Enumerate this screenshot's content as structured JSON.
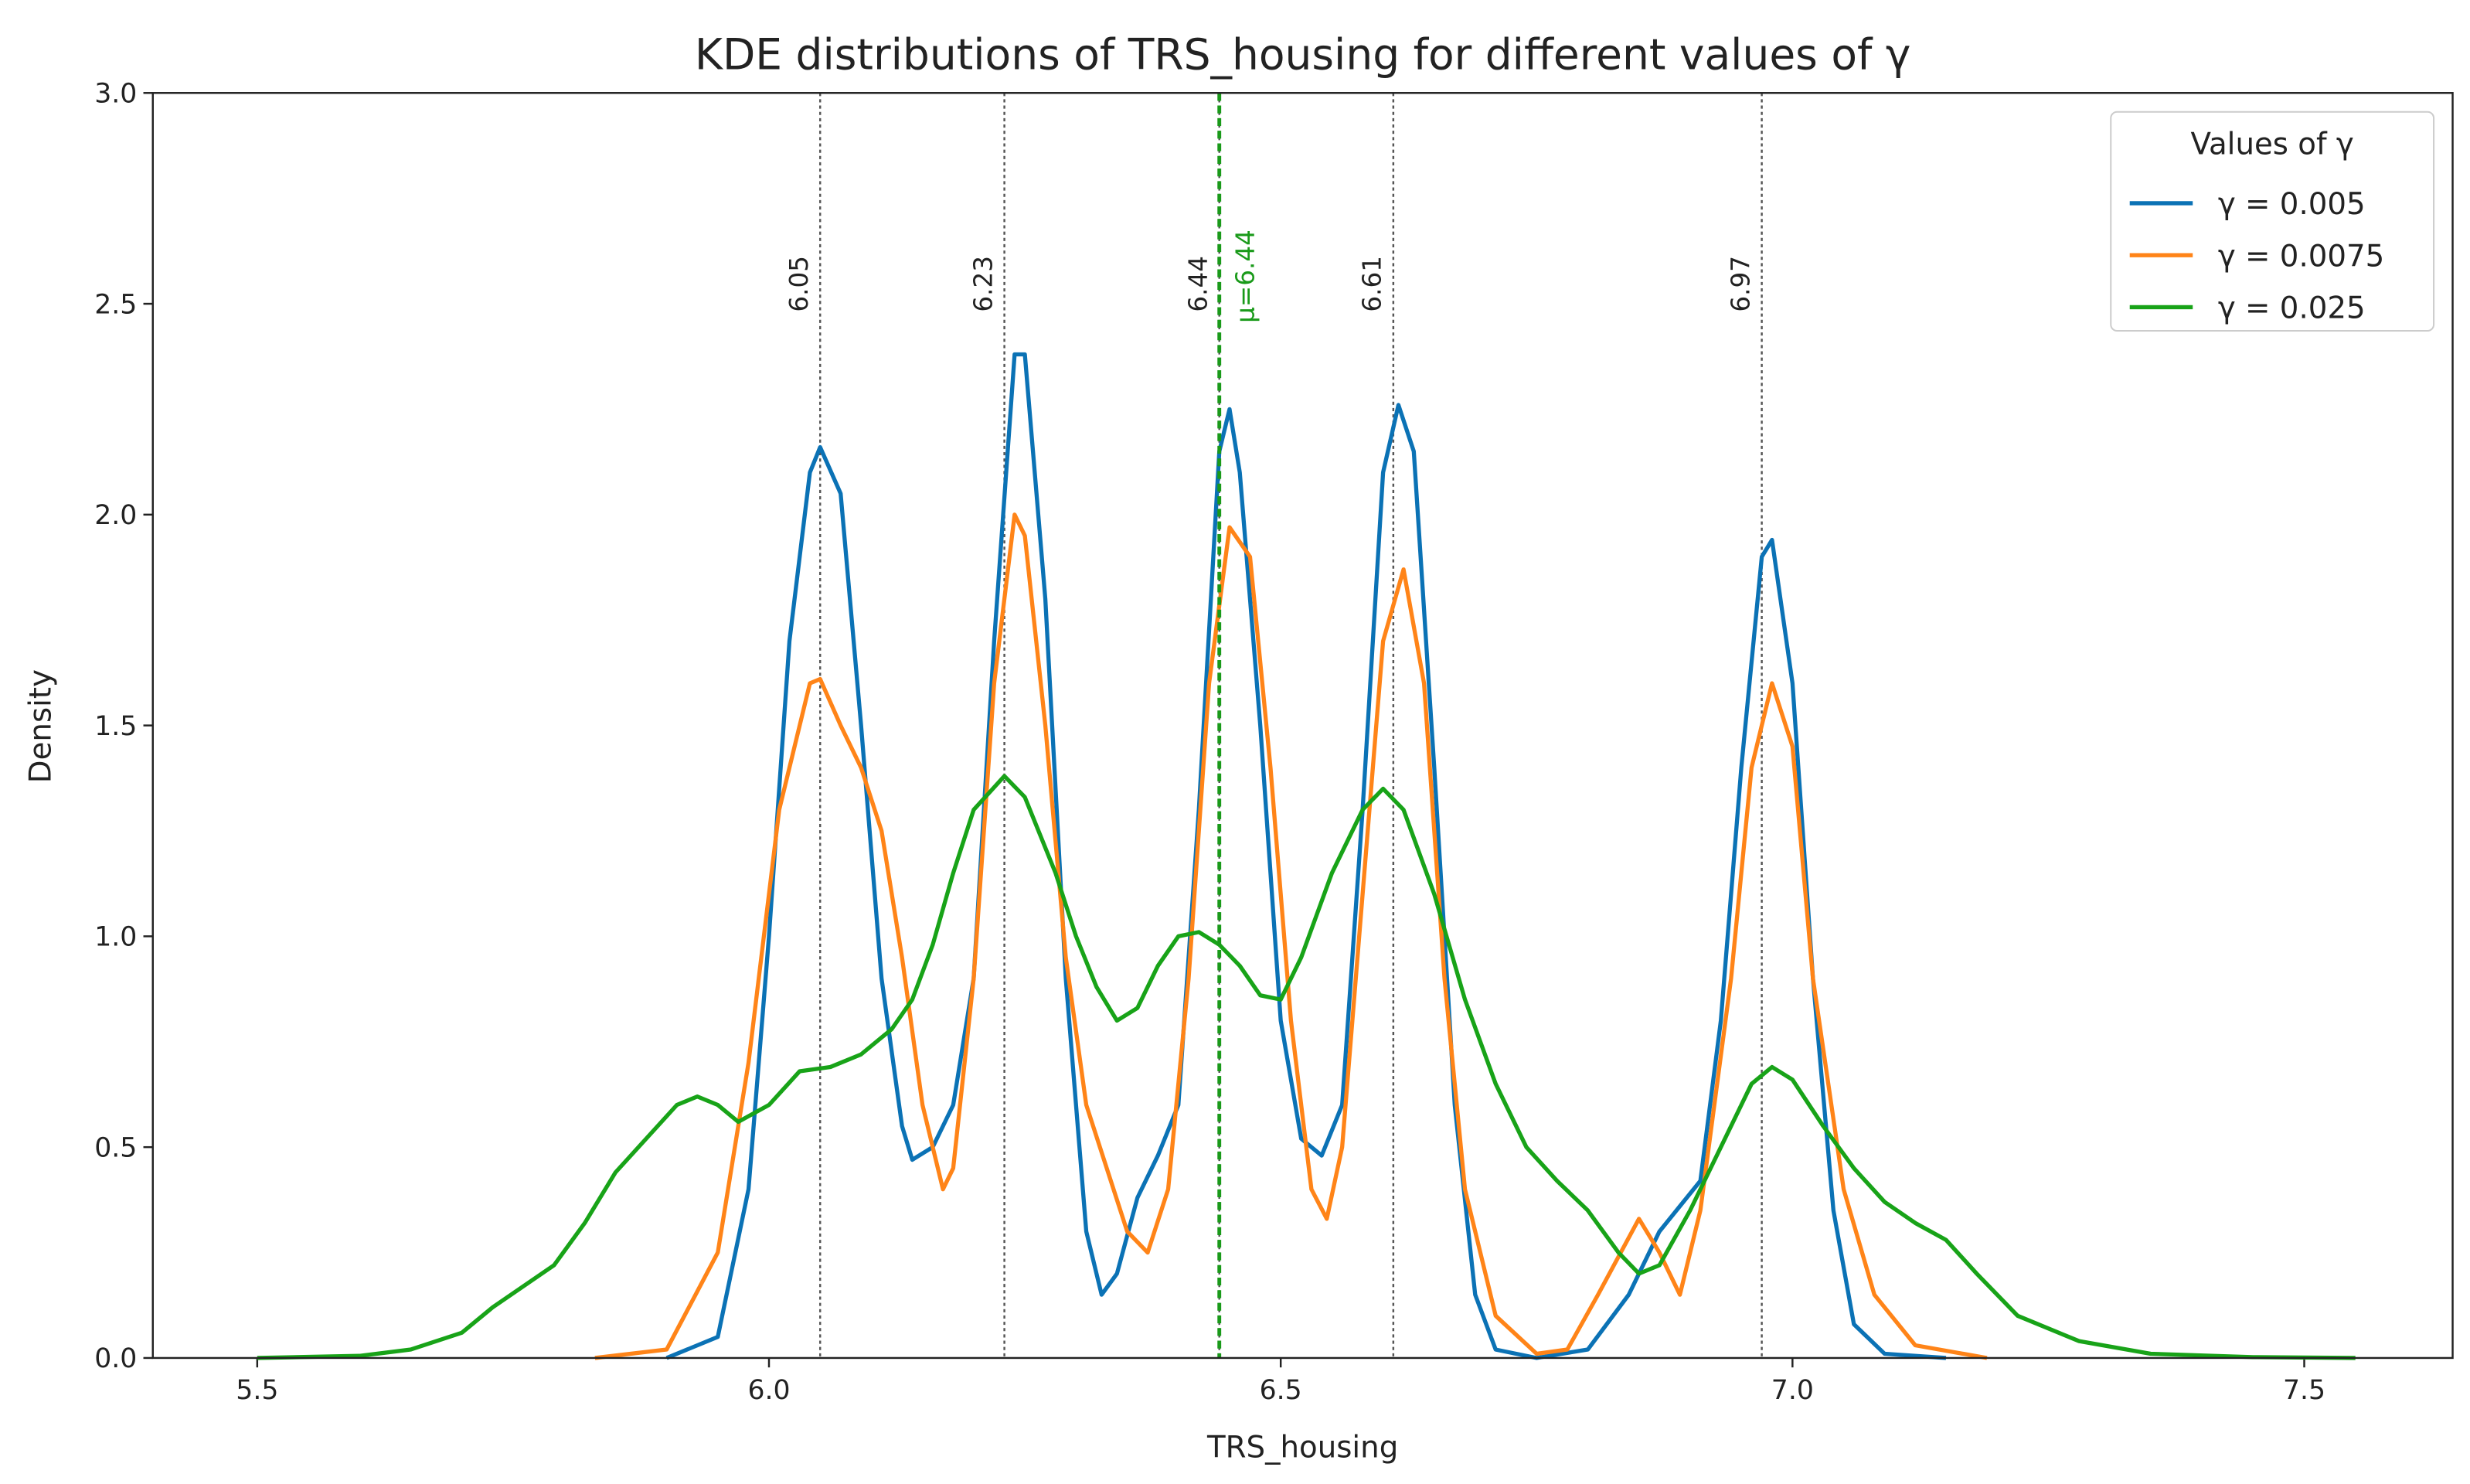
{
  "chart_data": {
    "type": "line",
    "title": "KDE distributions of TRS_housing for different values of γ",
    "xlabel": "TRS_housing",
    "ylabel": "Density",
    "xlim": [
      5.398,
      7.645
    ],
    "ylim": [
      0,
      3
    ],
    "xticks": [
      5.5,
      {
        "value": 6.0,
        "label": "6.0"
      },
      6.5,
      {
        "value": 7.0,
        "label": "7.0"
      },
      7.5
    ],
    "yticks": [
      {
        "value": 0,
        "label": "0.0"
      },
      0.5,
      {
        "value": 1,
        "label": "1.0"
      },
      1.5,
      {
        "value": 2,
        "label": "2.0"
      },
      2.5,
      {
        "value": 3,
        "label": "3.0"
      }
    ],
    "legend_title": "Values of γ",
    "legend_position": "upper right",
    "vlines": [
      6.05,
      6.23,
      6.44,
      6.61,
      6.97
    ],
    "mean_line": {
      "value": 6.44,
      "label": "μ=6.44",
      "color": "#1a9a1a"
    },
    "series": [
      {
        "name": "γ = 0.005",
        "color": "#0b72b5",
        "x": [
          5.9,
          5.95,
          5.98,
          6.0,
          6.02,
          6.04,
          6.05,
          6.07,
          6.09,
          6.11,
          6.13,
          6.14,
          6.16,
          6.18,
          6.2,
          6.22,
          6.24,
          6.25,
          6.27,
          6.29,
          6.31,
          6.325,
          6.34,
          6.36,
          6.38,
          6.4,
          6.42,
          6.44,
          6.45,
          6.46,
          6.48,
          6.5,
          6.52,
          6.54,
          6.56,
          6.58,
          6.6,
          6.615,
          6.63,
          6.65,
          6.67,
          6.69,
          6.71,
          6.75,
          6.8,
          6.84,
          6.87,
          6.89,
          6.91,
          6.93,
          6.95,
          6.97,
          6.98,
          7.0,
          7.02,
          7.04,
          7.06,
          7.09,
          7.15
        ],
        "values": [
          0,
          0.05,
          0.4,
          1.0,
          1.7,
          2.1,
          2.16,
          2.05,
          1.5,
          0.9,
          0.55,
          0.47,
          0.5,
          0.6,
          0.9,
          1.7,
          2.38,
          2.38,
          1.8,
          0.9,
          0.3,
          0.15,
          0.2,
          0.38,
          0.48,
          0.6,
          1.3,
          2.15,
          2.25,
          2.1,
          1.5,
          0.8,
          0.52,
          0.48,
          0.6,
          1.3,
          2.1,
          2.26,
          2.15,
          1.4,
          0.6,
          0.15,
          0.02,
          0,
          0.02,
          0.15,
          0.3,
          0.36,
          0.42,
          0.8,
          1.4,
          1.9,
          1.94,
          1.6,
          0.9,
          0.35,
          0.08,
          0.01,
          0
        ]
      },
      {
        "name": "γ = 0.0075",
        "color": "#ff8418",
        "x": [
          5.83,
          5.9,
          5.95,
          5.98,
          6.01,
          6.04,
          6.05,
          6.07,
          6.09,
          6.11,
          6.13,
          6.15,
          6.17,
          6.18,
          6.2,
          6.22,
          6.24,
          6.25,
          6.27,
          6.29,
          6.31,
          6.33,
          6.35,
          6.37,
          6.39,
          6.41,
          6.43,
          6.45,
          6.47,
          6.49,
          6.51,
          6.53,
          6.545,
          6.56,
          6.58,
          6.6,
          6.62,
          6.64,
          6.66,
          6.68,
          6.71,
          6.75,
          6.78,
          6.81,
          6.85,
          6.87,
          6.89,
          6.91,
          6.94,
          6.96,
          6.98,
          7.0,
          7.02,
          7.05,
          7.08,
          7.12,
          7.19
        ],
        "values": [
          0,
          0.02,
          0.25,
          0.7,
          1.3,
          1.6,
          1.61,
          1.5,
          1.4,
          1.25,
          0.95,
          0.6,
          0.4,
          0.45,
          0.9,
          1.6,
          2.0,
          1.95,
          1.5,
          0.95,
          0.6,
          0.45,
          0.3,
          0.25,
          0.4,
          0.9,
          1.6,
          1.97,
          1.9,
          1.4,
          0.8,
          0.4,
          0.33,
          0.5,
          1.1,
          1.7,
          1.87,
          1.6,
          0.9,
          0.4,
          0.1,
          0.01,
          0.02,
          0.15,
          0.33,
          0.25,
          0.15,
          0.35,
          0.9,
          1.4,
          1.6,
          1.45,
          0.9,
          0.4,
          0.15,
          0.03,
          0
        ]
      },
      {
        "name": "γ = 0.025",
        "color": "#18a318",
        "x": [
          5.5,
          5.6,
          5.65,
          5.7,
          5.73,
          5.76,
          5.79,
          5.82,
          5.85,
          5.88,
          5.91,
          5.93,
          5.95,
          5.97,
          6.0,
          6.03,
          6.06,
          6.09,
          6.12,
          6.14,
          6.16,
          6.18,
          6.2,
          6.23,
          6.25,
          6.28,
          6.3,
          6.32,
          6.34,
          6.36,
          6.38,
          6.4,
          6.42,
          6.44,
          6.46,
          6.48,
          6.5,
          6.52,
          6.55,
          6.58,
          6.6,
          6.62,
          6.65,
          6.68,
          6.71,
          6.74,
          6.77,
          6.8,
          6.83,
          6.85,
          6.87,
          6.9,
          6.93,
          6.96,
          6.98,
          7.0,
          7.03,
          7.06,
          7.09,
          7.12,
          7.15,
          7.18,
          7.22,
          7.28,
          7.35,
          7.45,
          7.55
        ],
        "values": [
          0,
          0.005,
          0.02,
          0.06,
          0.12,
          0.17,
          0.22,
          0.32,
          0.44,
          0.52,
          0.6,
          0.62,
          0.6,
          0.56,
          0.6,
          0.68,
          0.69,
          0.72,
          0.78,
          0.85,
          0.98,
          1.15,
          1.3,
          1.38,
          1.33,
          1.15,
          1.0,
          0.88,
          0.8,
          0.83,
          0.93,
          1.0,
          1.01,
          0.98,
          0.93,
          0.86,
          0.85,
          0.95,
          1.15,
          1.3,
          1.35,
          1.3,
          1.1,
          0.85,
          0.65,
          0.5,
          0.42,
          0.35,
          0.25,
          0.2,
          0.22,
          0.35,
          0.5,
          0.65,
          0.69,
          0.66,
          0.55,
          0.45,
          0.37,
          0.32,
          0.28,
          0.2,
          0.1,
          0.04,
          0.01,
          0.002,
          0
        ]
      }
    ]
  }
}
